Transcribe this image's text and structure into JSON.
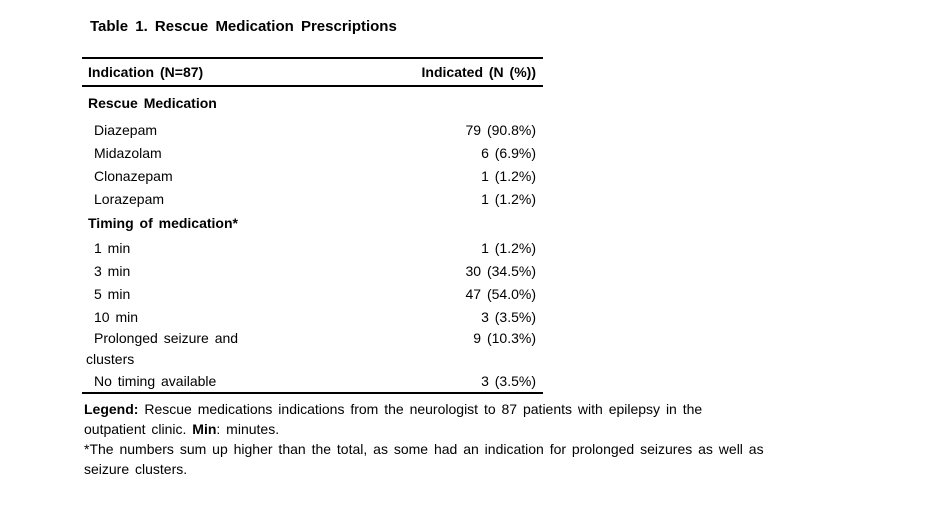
{
  "title": "Table 1. Rescue Medication Prescriptions",
  "table": {
    "header": {
      "indication": "Indication (N=87)",
      "indicated": "Indicated (N (%))"
    },
    "section1": {
      "label": "Rescue Medication",
      "rows": [
        {
          "label": "Diazepam",
          "value": "79 (90.8%)"
        },
        {
          "label": "Midazolam",
          "value": "6 (6.9%)"
        },
        {
          "label": "Clonazepam",
          "value": "1 (1.2%)"
        },
        {
          "label": "Lorazepam",
          "value": "1 (1.2%)"
        }
      ]
    },
    "section2": {
      "label": "Timing of medication*",
      "rows": [
        {
          "label": "1 min",
          "value": "1 (1.2%)"
        },
        {
          "label": "3 min",
          "value": "30 (34.5%)"
        },
        {
          "label": "5 min",
          "value": "47 (54.0%)"
        },
        {
          "label": "10 min",
          "value": "3 (3.5%)"
        },
        {
          "label": "Prolonged seizure and\nclusters",
          "value": "9 (10.3%)"
        },
        {
          "label": "No timing available",
          "value": "3 (3.5%)"
        }
      ]
    }
  },
  "legend": {
    "label": "Legend:",
    "line1_rest": " Rescue medications indications from the neurologist to 87 patients with epilepsy in the",
    "line2_pre": "outpatient clinic. ",
    "min_label": "Min",
    "line2_post": ": minutes.",
    "footnote_line1": "*The numbers sum up higher than the total, as some had an indication for prolonged seizures as well as",
    "footnote_line2": "seizure clusters."
  }
}
